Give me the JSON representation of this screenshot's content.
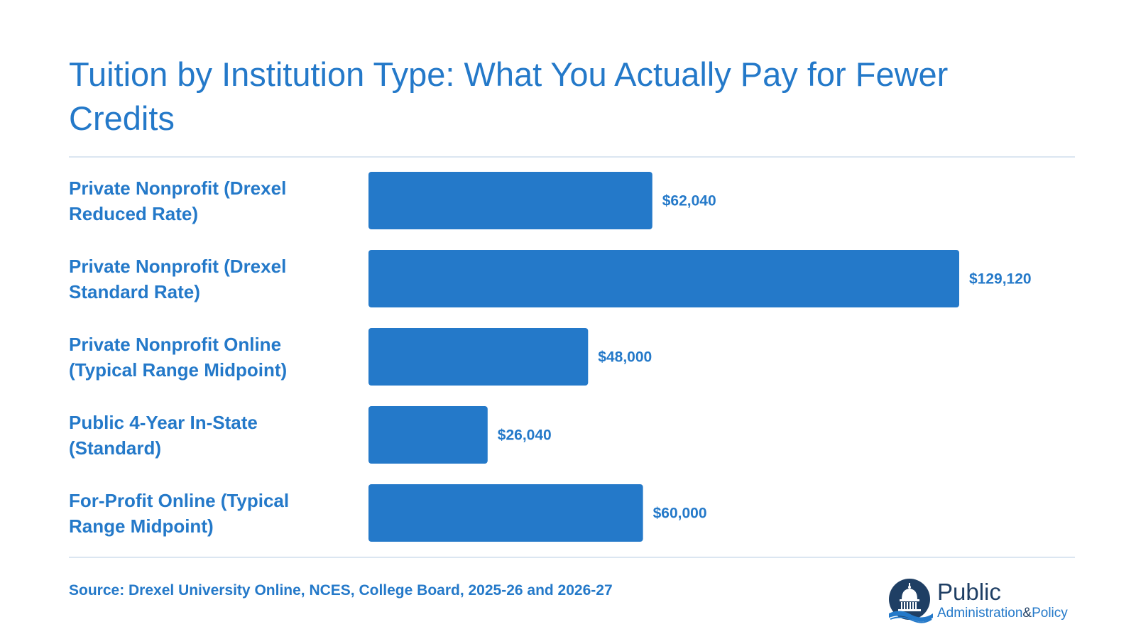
{
  "chart_data": {
    "type": "bar",
    "orientation": "horizontal",
    "title": "Tuition by Institution Type: What You Actually Pay for Fewer Credits",
    "categories": [
      [
        "Private Nonprofit (Drexel",
        "Reduced Rate)"
      ],
      [
        "Private Nonprofit (Drexel",
        "Standard Rate)"
      ],
      [
        "Private Nonprofit Online",
        "(Typical Range Midpoint)"
      ],
      [
        "Public 4-Year In-State",
        "(Standard)"
      ],
      [
        "For-Profit Online (Typical",
        "Range Midpoint)"
      ]
    ],
    "values": [
      62040,
      129120,
      48000,
      26040,
      60000
    ],
    "value_labels": [
      "$62,040",
      "$129,120",
      "$48,000",
      "$26,040",
      "$60,000"
    ],
    "xlim": [
      0,
      129120
    ],
    "grid": false,
    "bar_color": "#2479c9"
  },
  "source": "Source: Drexel University Online, NCES, College Board, 2025-26 and 2026-27",
  "logo": {
    "word_primary": "Public",
    "word_secondary": "Administration",
    "ampersand": "&",
    "word_tertiary": "Policy"
  },
  "colors": {
    "accent": "#2479c9",
    "rule": "#dbe6f1",
    "logo_dark": "#1f3f64"
  }
}
